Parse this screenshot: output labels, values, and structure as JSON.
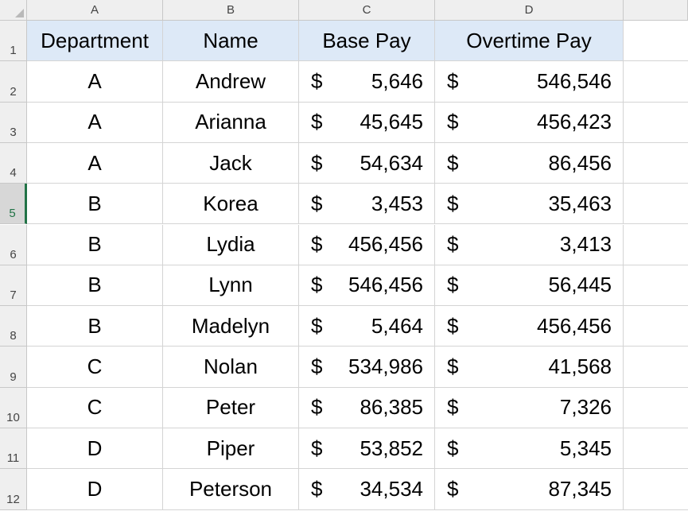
{
  "sheet": {
    "columns": [
      "A",
      "B",
      "C",
      "D"
    ],
    "rows": [
      "1",
      "2",
      "3",
      "4",
      "5",
      "6",
      "7",
      "8",
      "9",
      "10",
      "11",
      "12"
    ],
    "active_row": "5",
    "header": [
      "Department",
      "Name",
      "Base Pay",
      "Overtime Pay"
    ],
    "currency_symbol": "$",
    "data": [
      [
        "A",
        "Andrew",
        "5,646",
        "546,546"
      ],
      [
        "A",
        "Arianna",
        "45,645",
        "456,423"
      ],
      [
        "A",
        "Jack",
        "54,634",
        "86,456"
      ],
      [
        "B",
        "Korea",
        "3,453",
        "35,463"
      ],
      [
        "B",
        "Lydia",
        "456,456",
        "3,413"
      ],
      [
        "B",
        "Lynn",
        "546,456",
        "56,445"
      ],
      [
        "B",
        "Madelyn",
        "5,464",
        "456,456"
      ],
      [
        "C",
        "Nolan",
        "534,986",
        "41,568"
      ],
      [
        "C",
        "Peter",
        "86,385",
        "7,326"
      ],
      [
        "D",
        "Piper",
        "53,852",
        "5,345"
      ],
      [
        "D",
        "Peterson",
        "34,534",
        "87,345"
      ]
    ],
    "colors": {
      "header_fill": "#dde9f7",
      "selection_accent": "#217346",
      "gridline": "#d4d4d4",
      "heading_background": "#efefef"
    }
  }
}
